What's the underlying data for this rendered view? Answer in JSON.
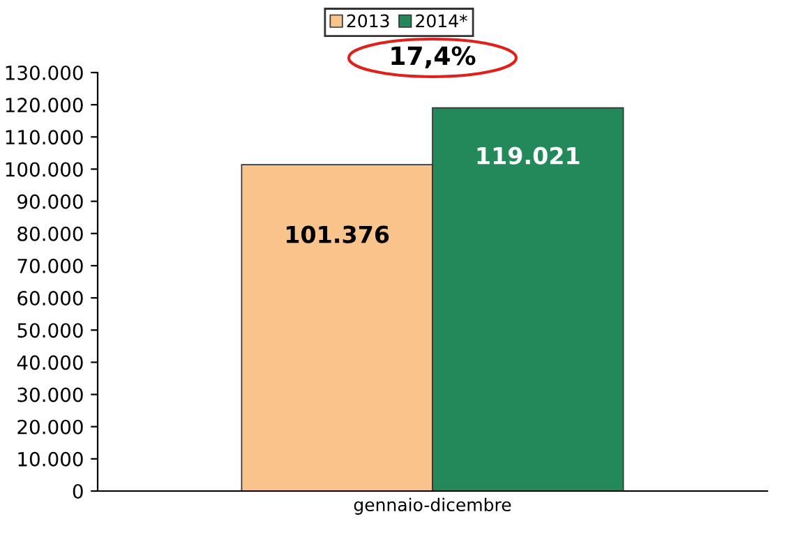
{
  "chart_data": {
    "type": "bar",
    "categories": [
      "gennaio-dicembre"
    ],
    "series": [
      {
        "name": "2013",
        "color": "#f9c38c",
        "values": [
          101376
        ],
        "value_labels": [
          "101.376"
        ]
      },
      {
        "name": "2014*",
        "color": "#23895a",
        "values": [
          119021
        ],
        "value_labels": [
          "119.021"
        ]
      }
    ],
    "ylim": [
      0,
      130000
    ],
    "yticks": [
      {
        "value": 0,
        "label": "0"
      },
      {
        "value": 10000,
        "label": "10.000"
      },
      {
        "value": 20000,
        "label": "20.000"
      },
      {
        "value": 30000,
        "label": "30.000"
      },
      {
        "value": 40000,
        "label": "40.000"
      },
      {
        "value": 50000,
        "label": "50.000"
      },
      {
        "value": 60000,
        "label": "60.000"
      },
      {
        "value": 70000,
        "label": "70.000"
      },
      {
        "value": 80000,
        "label": "80.000"
      },
      {
        "value": 90000,
        "label": "90.000"
      },
      {
        "value": 100000,
        "label": "100.000"
      },
      {
        "value": 110000,
        "label": "110.000"
      },
      {
        "value": 120000,
        "label": "120.000"
      },
      {
        "value": 130000,
        "label": "130.000"
      }
    ],
    "annotations": [
      "17,4%"
    ],
    "legend": "top",
    "grid": false
  }
}
